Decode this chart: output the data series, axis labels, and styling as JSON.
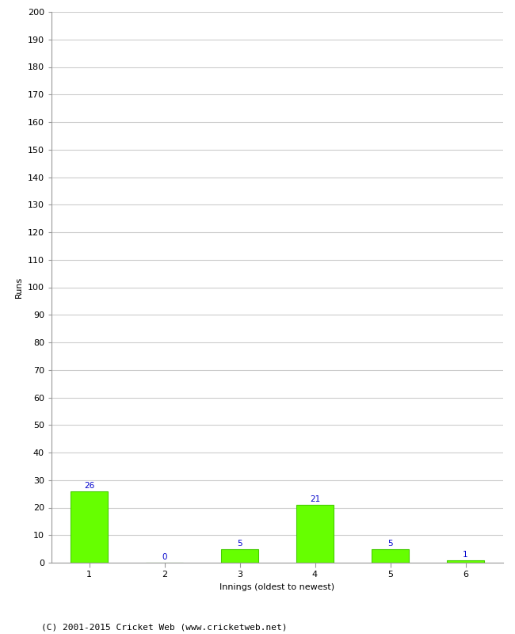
{
  "categories": [
    "1",
    "2",
    "3",
    "4",
    "5",
    "6"
  ],
  "values": [
    26,
    0,
    5,
    21,
    5,
    1
  ],
  "bar_color": "#66ff00",
  "bar_edgecolor": "#44cc00",
  "xlabel": "Innings (oldest to newest)",
  "ylabel": "Runs",
  "ylim": [
    0,
    200
  ],
  "yticks": [
    0,
    10,
    20,
    30,
    40,
    50,
    60,
    70,
    80,
    90,
    100,
    110,
    120,
    130,
    140,
    150,
    160,
    170,
    180,
    190,
    200
  ],
  "label_color": "#0000cc",
  "label_fontsize": 7.5,
  "axis_fontsize": 8,
  "tick_fontsize": 8,
  "footer_text": "(C) 2001-2015 Cricket Web (www.cricketweb.net)",
  "footer_fontsize": 8,
  "background_color": "#ffffff",
  "grid_color": "#cccccc",
  "spine_color": "#999999"
}
